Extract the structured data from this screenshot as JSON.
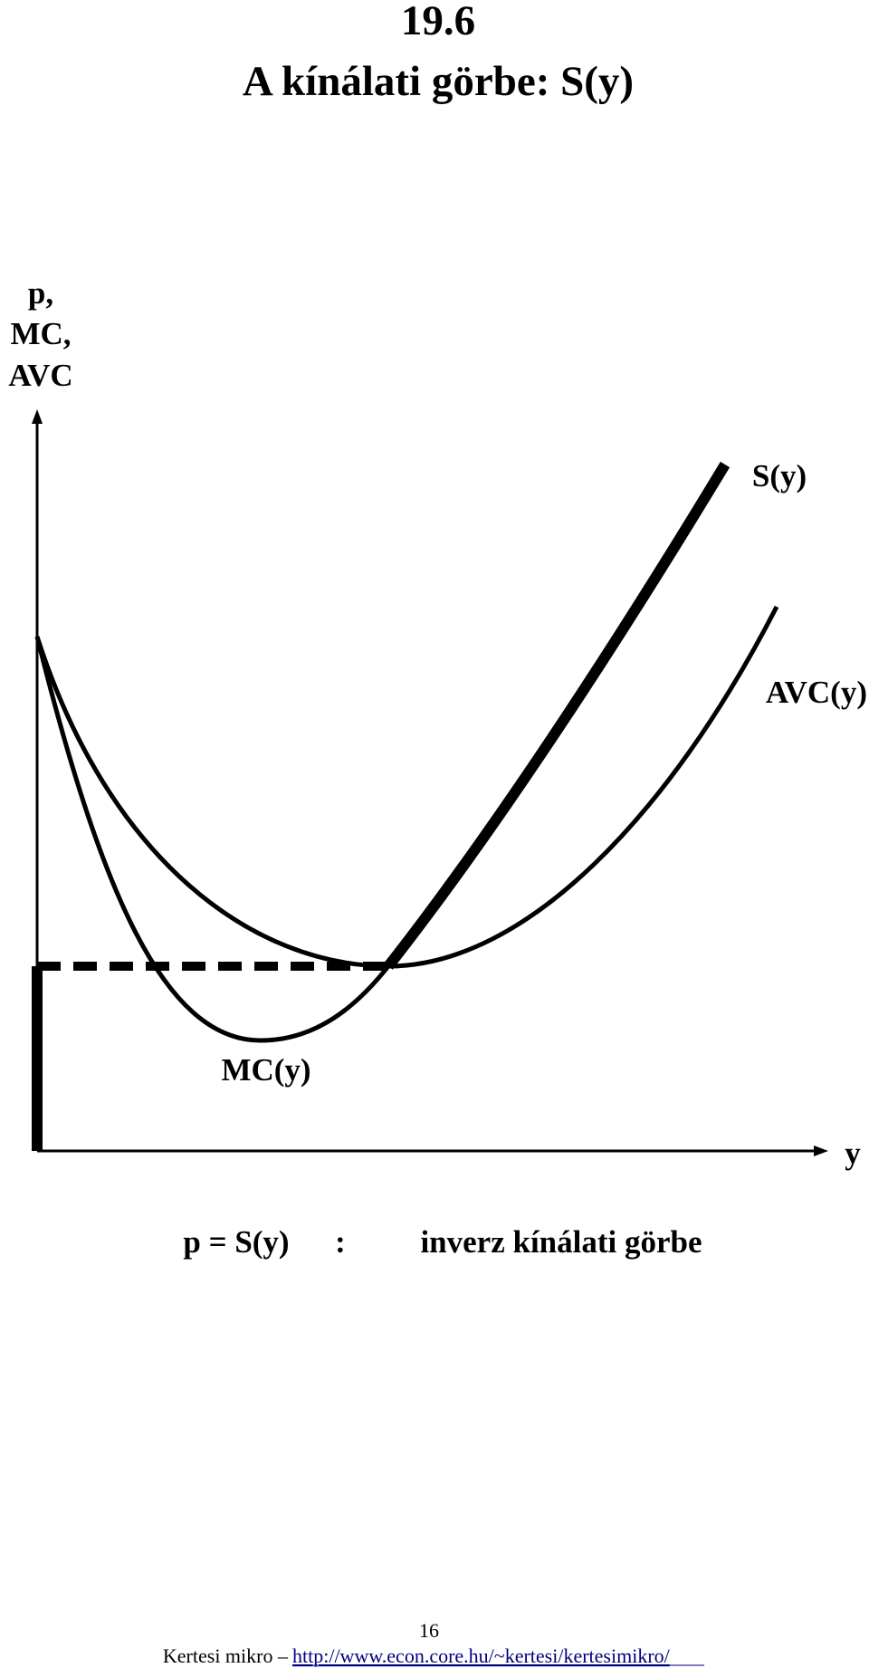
{
  "header": {
    "number": "19.6",
    "title": "A kínálati görbe: S(y)"
  },
  "diagram": {
    "y_axis_label": [
      "p,",
      "MC,",
      "AVC"
    ],
    "x_axis_label": "y",
    "curves": {
      "supply": "S(y)",
      "avc": "AVC(y)",
      "mc": "MC(y)"
    },
    "caption": {
      "formula": "p = S(y)",
      "separator": ":",
      "text": "inverz kínálati görbe"
    }
  },
  "footer": {
    "page": "16",
    "author": "Kertesi mikro –",
    "url": "http://www.econ.core.hu/~kertesi/kertesimikro/"
  }
}
